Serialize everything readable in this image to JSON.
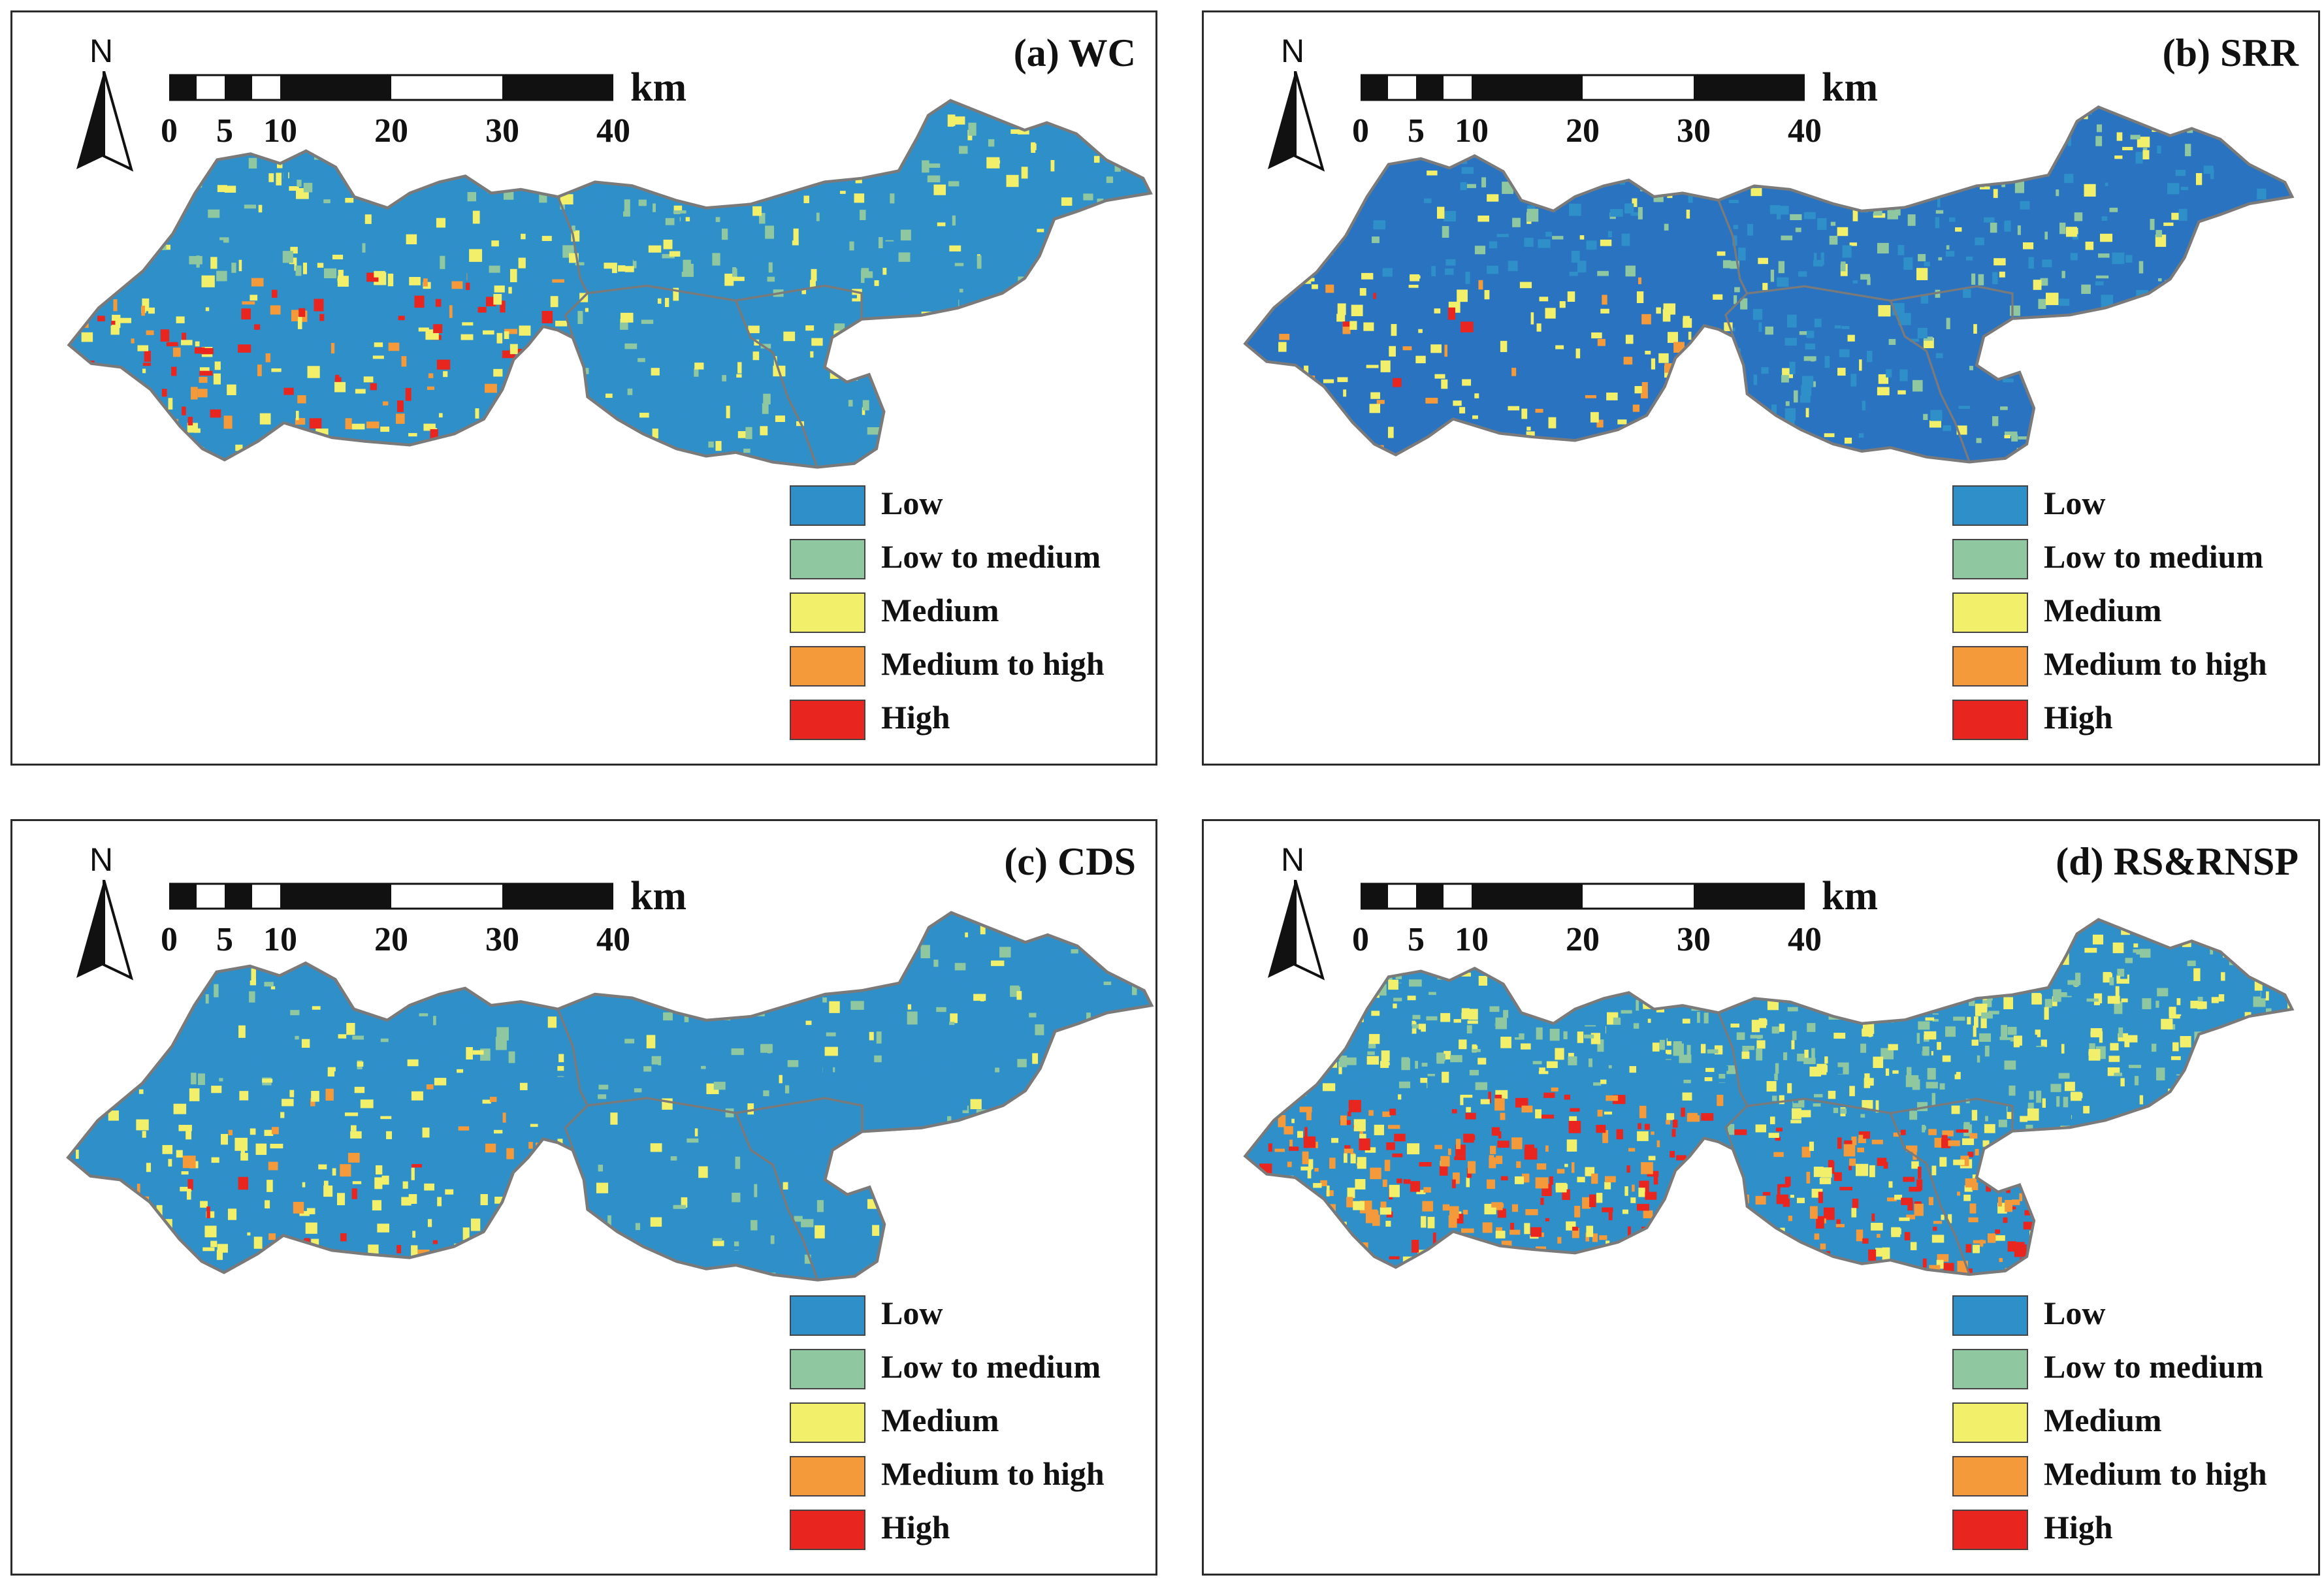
{
  "colors": {
    "low": "#2f8fc9",
    "low_to_medium": "#8fc8a0",
    "medium": "#f2f06a",
    "medium_to_high": "#f59a3a",
    "high": "#e8251e",
    "boundary": "#7a7a7a"
  },
  "legend": [
    {
      "label": "Low",
      "color": "#2f8fc9"
    },
    {
      "label": "Low to medium",
      "color": "#8fc8a0"
    },
    {
      "label": "Medium",
      "color": "#f2f06a"
    },
    {
      "label": "Medium to high",
      "color": "#f59a3a"
    },
    {
      "label": "High",
      "color": "#e8251e"
    }
  ],
  "scale": {
    "unit": "km",
    "ticks": [
      "0",
      "5",
      "10",
      "20",
      "30",
      "40"
    ]
  },
  "north_label": "N",
  "panels": [
    {
      "title": "(a) WC",
      "base_color": "#2f8fc9",
      "hotspot_level": "high"
    },
    {
      "title": "(b) SRR",
      "base_color": "#2a73c0",
      "hotspot_level": "medium"
    },
    {
      "title": "(c) CDS",
      "base_color": "#2f8fc9",
      "hotspot_level": "medium"
    },
    {
      "title": "(d) RS&RNSP",
      "base_color": "#2f8fc9",
      "hotspot_level": "very high"
    }
  ]
}
